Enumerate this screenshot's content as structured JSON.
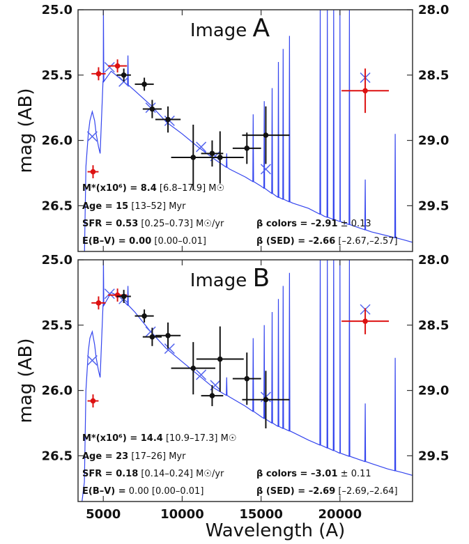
{
  "colors": {
    "model": "#3344ee",
    "obs_primary": "#dd1111",
    "obs_secondary": "#111111",
    "model_point": "#5566ee"
  },
  "xlabel": "Wavelength (A)",
  "chart_data": [
    {
      "type": "scatter",
      "title": "Image A",
      "title_parts": [
        "Image ",
        "A"
      ],
      "xlabel": "Wavelength (A)",
      "ylabel": "mag (AB)",
      "xlim": [
        3400,
        24600
      ],
      "ylim": [
        25.0,
        26.85
      ],
      "ylim_right": [
        28.0,
        29.85
      ],
      "xticks": [
        5000,
        10000,
        15000,
        20000
      ],
      "yticks": [
        25.0,
        25.5,
        26.0,
        26.5
      ],
      "yticks_right": [
        28.0,
        28.5,
        29.0,
        29.5
      ],
      "model_sed": {
        "continuum": [
          [
            3400,
            27.2
          ],
          [
            3800,
            26.9
          ],
          [
            3900,
            26.2
          ],
          [
            4050,
            25.95
          ],
          [
            4150,
            25.85
          ],
          [
            4300,
            25.78
          ],
          [
            4450,
            25.85
          ],
          [
            4550,
            25.95
          ],
          [
            4700,
            26.05
          ],
          [
            4800,
            26.1
          ],
          [
            5000,
            25.55
          ],
          [
            5500,
            25.47
          ],
          [
            6000,
            25.52
          ],
          [
            7000,
            25.62
          ],
          [
            8000,
            25.73
          ],
          [
            9000,
            25.86
          ],
          [
            10000,
            25.95
          ],
          [
            11000,
            26.05
          ],
          [
            12000,
            26.14
          ],
          [
            13000,
            26.22
          ],
          [
            14000,
            26.28
          ],
          [
            15000,
            26.35
          ],
          [
            16000,
            26.43
          ],
          [
            17000,
            26.48
          ],
          [
            18000,
            26.52
          ],
          [
            19000,
            26.58
          ],
          [
            20000,
            26.62
          ],
          [
            21000,
            26.66
          ],
          [
            22000,
            26.7
          ],
          [
            23000,
            26.73
          ],
          [
            24000,
            26.76
          ],
          [
            24600,
            26.78
          ]
        ],
        "lines": [
          [
            5007,
            25.0
          ],
          [
            6563,
            25.35
          ],
          [
            12820,
            26.1
          ],
          [
            14500,
            25.8
          ],
          [
            15200,
            25.7
          ],
          [
            15700,
            25.6
          ],
          [
            16100,
            25.4
          ],
          [
            16400,
            25.3
          ],
          [
            16800,
            25.2
          ],
          [
            18750,
            25.0
          ],
          [
            19200,
            25.0
          ],
          [
            19600,
            25.0
          ],
          [
            20000,
            25.0
          ],
          [
            20600,
            25.0
          ],
          [
            21600,
            26.3
          ],
          [
            23500,
            25.95
          ]
        ]
      },
      "model_points": [
        [
          4300,
          25.97
        ],
        [
          5400,
          25.44
        ],
        [
          6300,
          25.55
        ],
        [
          8000,
          25.75
        ],
        [
          9200,
          25.85
        ],
        [
          11200,
          26.05
        ],
        [
          12100,
          26.12
        ],
        [
          15300,
          26.22
        ],
        [
          21600,
          25.52
        ]
      ],
      "obs_primary": [
        {
          "x": 4350,
          "y": 26.24,
          "xerr": 350,
          "yerr": 0.05
        },
        {
          "x": 4700,
          "y": 25.49,
          "xerr": 450,
          "yerr": 0.05
        },
        {
          "x": 5900,
          "y": 25.43,
          "xerr": 600,
          "yerr": 0.05
        },
        {
          "x": 21600,
          "y": 25.62,
          "xerr": 1500,
          "yerr": 0.17
        }
      ],
      "obs_secondary": [
        {
          "x": 6300,
          "y": 25.5,
          "xerr": 450,
          "yerr": 0.05
        },
        {
          "x": 7600,
          "y": 25.57,
          "xerr": 600,
          "yerr": 0.05
        },
        {
          "x": 8100,
          "y": 25.76,
          "xerr": 600,
          "yerr": 0.07
        },
        {
          "x": 9100,
          "y": 25.84,
          "xerr": 800,
          "yerr": 0.1
        },
        {
          "x": 10700,
          "y": 26.13,
          "xerr": 1400,
          "yerr": 0.25
        },
        {
          "x": 11900,
          "y": 26.1,
          "xerr": 700,
          "yerr": 0.1
        },
        {
          "x": 12400,
          "y": 26.13,
          "xerr": 1500,
          "yerr": 0.2
        },
        {
          "x": 14100,
          "y": 26.06,
          "xerr": 900,
          "yerr": 0.12
        },
        {
          "x": 15300,
          "y": 25.96,
          "xerr": 1500,
          "yerr": 0.22
        }
      ],
      "annotations": [
        {
          "bold": "M*(x10⁶) = 8.4",
          "rest": " [6.8–17.9] M☉"
        },
        {
          "bold": "Age = 15",
          "rest": " [13–52] Myr"
        },
        {
          "bold": "SFR = 0.53",
          "rest": " [0.25–0.73] M☉/yr"
        },
        {
          "bold": "E(B–V) = 0.00",
          "rest": " [0.00–0.01]"
        }
      ],
      "beta": [
        {
          "bold": "β colors = –2.91",
          "rest": " ± 0.13"
        },
        {
          "bold": "β (SED) = –2.66",
          "rest": " [–2.67,–2.57]"
        }
      ]
    },
    {
      "type": "scatter",
      "title": "Image B",
      "title_parts": [
        "Image ",
        "B"
      ],
      "xlabel": "Wavelength (A)",
      "ylabel": "mag (AB)",
      "xlim": [
        3400,
        24600
      ],
      "ylim": [
        25.0,
        26.85
      ],
      "ylim_right": [
        28.0,
        29.85
      ],
      "xticks": [
        5000,
        10000,
        15000,
        20000
      ],
      "yticks": [
        25.0,
        25.5,
        26.0,
        26.5
      ],
      "yticks_right": [
        28.0,
        28.5,
        29.0,
        29.5
      ],
      "model_sed": {
        "continuum": [
          [
            3400,
            27.1
          ],
          [
            3800,
            26.7
          ],
          [
            3900,
            26.0
          ],
          [
            4050,
            25.7
          ],
          [
            4150,
            25.6
          ],
          [
            4300,
            25.55
          ],
          [
            4450,
            25.65
          ],
          [
            4550,
            25.75
          ],
          [
            4700,
            25.85
          ],
          [
            4800,
            25.9
          ],
          [
            5000,
            25.35
          ],
          [
            5500,
            25.25
          ],
          [
            6000,
            25.28
          ],
          [
            7000,
            25.4
          ],
          [
            8000,
            25.55
          ],
          [
            9000,
            25.68
          ],
          [
            10000,
            25.78
          ],
          [
            11000,
            25.88
          ],
          [
            12000,
            25.98
          ],
          [
            13000,
            26.05
          ],
          [
            14000,
            26.12
          ],
          [
            15000,
            26.2
          ],
          [
            16000,
            26.27
          ],
          [
            17000,
            26.32
          ],
          [
            18000,
            26.38
          ],
          [
            19000,
            26.43
          ],
          [
            20000,
            26.48
          ],
          [
            21000,
            26.52
          ],
          [
            22000,
            26.56
          ],
          [
            23000,
            26.6
          ],
          [
            24000,
            26.63
          ],
          [
            24600,
            26.65
          ]
        ],
        "lines": [
          [
            5007,
            25.0
          ],
          [
            6563,
            25.2
          ],
          [
            12820,
            25.9
          ],
          [
            14500,
            25.6
          ],
          [
            15200,
            25.5
          ],
          [
            15700,
            25.4
          ],
          [
            16100,
            25.3
          ],
          [
            16400,
            25.2
          ],
          [
            16800,
            25.1
          ],
          [
            18750,
            25.0
          ],
          [
            19200,
            25.0
          ],
          [
            19600,
            25.0
          ],
          [
            20000,
            25.0
          ],
          [
            20600,
            25.0
          ],
          [
            21600,
            26.1
          ],
          [
            23500,
            25.75
          ]
        ]
      },
      "model_points": [
        [
          4300,
          25.77
        ],
        [
          5400,
          25.26
        ],
        [
          6300,
          25.3
        ],
        [
          8000,
          25.55
        ],
        [
          9200,
          25.68
        ],
        [
          11200,
          25.88
        ],
        [
          12100,
          25.96
        ],
        [
          15300,
          26.05
        ],
        [
          21600,
          25.38
        ]
      ],
      "obs_primary": [
        {
          "x": 4350,
          "y": 26.08,
          "xerr": 350,
          "yerr": 0.05
        },
        {
          "x": 4700,
          "y": 25.33,
          "xerr": 450,
          "yerr": 0.05
        },
        {
          "x": 5900,
          "y": 25.27,
          "xerr": 600,
          "yerr": 0.05
        },
        {
          "x": 21600,
          "y": 25.47,
          "xerr": 1500,
          "yerr": 0.1
        }
      ],
      "obs_secondary": [
        {
          "x": 6300,
          "y": 25.28,
          "xerr": 450,
          "yerr": 0.05
        },
        {
          "x": 7600,
          "y": 25.43,
          "xerr": 600,
          "yerr": 0.05
        },
        {
          "x": 8100,
          "y": 25.59,
          "xerr": 600,
          "yerr": 0.07
        },
        {
          "x": 9100,
          "y": 25.58,
          "xerr": 800,
          "yerr": 0.1
        },
        {
          "x": 10700,
          "y": 25.83,
          "xerr": 1400,
          "yerr": 0.2
        },
        {
          "x": 11900,
          "y": 26.04,
          "xerr": 700,
          "yerr": 0.08
        },
        {
          "x": 12400,
          "y": 25.76,
          "xerr": 1500,
          "yerr": 0.25
        },
        {
          "x": 14100,
          "y": 25.91,
          "xerr": 900,
          "yerr": 0.2
        },
        {
          "x": 15300,
          "y": 26.07,
          "xerr": 1500,
          "yerr": 0.22
        }
      ],
      "annotations": [
        {
          "bold": "M*(x10⁶) = 14.4",
          "rest": " [10.9–17.3] M☉"
        },
        {
          "bold": "Age = 23",
          "rest": " [17–26] Myr"
        },
        {
          "bold": "SFR = 0.18",
          "rest": " [0.14–0.24] M☉/yr"
        },
        {
          "bold": "E(B–V) =",
          "rest": " 0.00 [0.00–0.01]"
        }
      ],
      "beta": [
        {
          "bold": "β colors = –3.01",
          "rest": " ± 0.11"
        },
        {
          "bold": "β (SED) = –2.69",
          "rest": " [–2.69,–2.64]"
        }
      ]
    }
  ]
}
